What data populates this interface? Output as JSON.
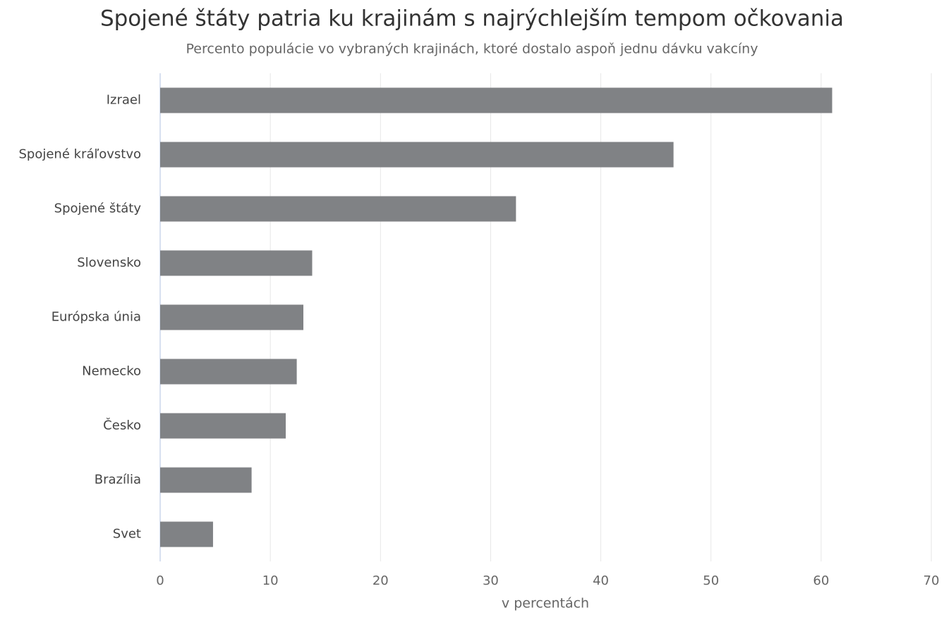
{
  "chart_data": {
    "type": "bar",
    "title": "Spojené štáty patria ku krajinám s najrýchlejším tempom očkovania",
    "subtitle": "Percento populácie vo vybraných krajinách, ktoré dostalo aspoň jednu dávku vakcíny",
    "x_label": "v percentách",
    "categories": [
      "Izrael",
      "Spojené kráľovstvo",
      "Spojené štáty",
      "Slovensko",
      "Európska únia",
      "Nemecko",
      "Česko",
      "Brazília",
      "Svet"
    ],
    "values": [
      61.0,
      46.6,
      32.3,
      13.8,
      13.0,
      12.4,
      11.4,
      8.3,
      4.8
    ],
    "color": "#808285",
    "xlim": [
      0,
      70
    ],
    "xticks": [
      0,
      10,
      20,
      30,
      40,
      50,
      60,
      70
    ],
    "grid": true
  }
}
